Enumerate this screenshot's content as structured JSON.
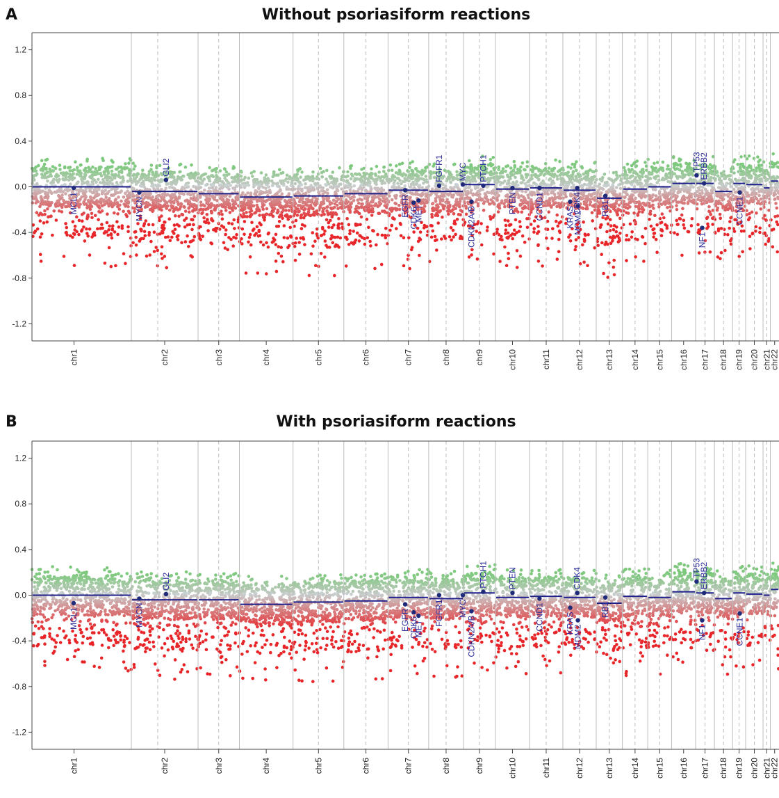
{
  "colors": {
    "gain": "#7fc97f",
    "loss": "#e8262a",
    "neutral": "#c8c8c8",
    "segment": "#1f1f8a",
    "gene_point": "#1f2a7a",
    "gene_label": "#2a2a9a"
  },
  "chart_data": [
    {
      "type": "scatter",
      "panel_label": "A",
      "title": "Without psoriasiform reactions",
      "xlabel": "",
      "ylabel": "",
      "ylim": [
        -1.35,
        1.35
      ],
      "yticks": [
        "1.2",
        "0.8",
        "0.4",
        "0.0",
        "-0.4",
        "-0.8",
        "-1.2"
      ],
      "ytick_values": [
        1.2,
        0.8,
        0.4,
        0.0,
        -0.4,
        -0.8,
        -1.2
      ],
      "grid": "vertical chromosome separators",
      "chromosomes": [
        "chr1",
        "chr2",
        "chr3",
        "chr4",
        "chr5",
        "chr6",
        "chr7",
        "chr8",
        "chr9",
        "chr10",
        "chr11",
        "chr12",
        "chr13",
        "chr14",
        "chr15",
        "chr16",
        "chr17",
        "chr18",
        "chr19",
        "chr20",
        "chr21",
        "chr22"
      ],
      "segments": [
        0.0,
        -0.04,
        -0.06,
        -0.09,
        -0.08,
        -0.06,
        -0.03,
        -0.04,
        0.02,
        -0.02,
        -0.01,
        -0.03,
        -0.1,
        -0.02,
        0.0,
        0.03,
        0.03,
        -0.04,
        0.03,
        0.02,
        -0.01,
        0.05
      ],
      "genes": [
        {
          "name": "MCL1",
          "chr": "chr1",
          "value": -0.01,
          "label_side": "below"
        },
        {
          "name": "MYCN",
          "chr": "chr2",
          "value": -0.05,
          "label_side": "below"
        },
        {
          "name": "GLI2",
          "chr": "chr2",
          "value": 0.06,
          "label_side": "above"
        },
        {
          "name": "EGFR",
          "chr": "chr7",
          "value": -0.03,
          "label_side": "below"
        },
        {
          "name": "CDK6",
          "chr": "chr7",
          "value": -0.14,
          "label_side": "below"
        },
        {
          "name": "MET",
          "chr": "chr7",
          "value": -0.12,
          "label_side": "below"
        },
        {
          "name": "FGFR1",
          "chr": "chr8",
          "value": 0.01,
          "label_side": "above"
        },
        {
          "name": "MYC",
          "chr": "chr8",
          "value": 0.02,
          "label_side": "above"
        },
        {
          "name": "CDKN2A/B",
          "chr": "chr9",
          "value": -0.13,
          "label_side": "below"
        },
        {
          "name": "PTCH1",
          "chr": "chr9",
          "value": 0.01,
          "label_side": "above"
        },
        {
          "name": "PTEN",
          "chr": "chr10",
          "value": -0.01,
          "label_side": "below"
        },
        {
          "name": "CCND1",
          "chr": "chr11",
          "value": -0.01,
          "label_side": "below"
        },
        {
          "name": "KRAS",
          "chr": "chr12",
          "value": -0.13,
          "label_side": "below"
        },
        {
          "name": "MDM2",
          "chr": "chr12",
          "value": -0.17,
          "label_side": "below"
        },
        {
          "name": "CDK4",
          "chr": "chr12",
          "value": -0.01,
          "label_side": "below"
        },
        {
          "name": "RB1",
          "chr": "chr13",
          "value": -0.08,
          "label_side": "below"
        },
        {
          "name": "TP53",
          "chr": "chr17",
          "value": 0.1,
          "label_side": "above"
        },
        {
          "name": "ERBB2",
          "chr": "chr17",
          "value": 0.03,
          "label_side": "above"
        },
        {
          "name": "NF1",
          "chr": "chr17",
          "value": -0.36,
          "label_side": "below"
        },
        {
          "name": "CCNE1",
          "chr": "chr19",
          "value": -0.05,
          "label_side": "below"
        }
      ]
    },
    {
      "type": "scatter",
      "panel_label": "B",
      "title": "With psoriasiform reactions",
      "xlabel": "",
      "ylabel": "",
      "ylim": [
        -1.35,
        1.35
      ],
      "yticks": [
        "1.2",
        "0.8",
        "0.4",
        "0.0",
        "-0.4",
        "-0.8",
        "-1.2"
      ],
      "ytick_values": [
        1.2,
        0.8,
        0.4,
        0.0,
        -0.4,
        -0.8,
        -1.2
      ],
      "grid": "vertical chromosome separators",
      "chromosomes": [
        "chr1",
        "chr2",
        "chr3",
        "chr4",
        "chr5",
        "chr6",
        "chr7",
        "chr8",
        "chr9",
        "chr10",
        "chr11",
        "chr12",
        "chr13",
        "chr14",
        "chr15",
        "chr16",
        "chr17",
        "chr18",
        "chr19",
        "chr20",
        "chr21",
        "chr22"
      ],
      "segments": [
        0.0,
        -0.04,
        -0.04,
        -0.08,
        -0.06,
        -0.05,
        -0.02,
        -0.03,
        0.02,
        -0.02,
        -0.01,
        -0.02,
        -0.07,
        -0.01,
        -0.02,
        0.03,
        0.02,
        -0.03,
        0.02,
        0.01,
        0.0,
        0.05
      ],
      "genes": [
        {
          "name": "MCL1",
          "chr": "chr1",
          "value": -0.07,
          "label_side": "below"
        },
        {
          "name": "MYCN",
          "chr": "chr2",
          "value": -0.03,
          "label_side": "below"
        },
        {
          "name": "GLI2",
          "chr": "chr2",
          "value": 0.01,
          "label_side": "above"
        },
        {
          "name": "EGFR",
          "chr": "chr7",
          "value": -0.08,
          "label_side": "below"
        },
        {
          "name": "CDK6",
          "chr": "chr7",
          "value": -0.15,
          "label_side": "below"
        },
        {
          "name": "MET",
          "chr": "chr7",
          "value": -0.18,
          "label_side": "below"
        },
        {
          "name": "FGFR1",
          "chr": "chr8",
          "value": 0.0,
          "label_side": "below"
        },
        {
          "name": "MYC",
          "chr": "chr8",
          "value": 0.0,
          "label_side": "below"
        },
        {
          "name": "CDKN2A/B",
          "chr": "chr9",
          "value": -0.14,
          "label_side": "below"
        },
        {
          "name": "PTCH1",
          "chr": "chr9",
          "value": 0.03,
          "label_side": "above"
        },
        {
          "name": "PTEN",
          "chr": "chr10",
          "value": 0.02,
          "label_side": "above"
        },
        {
          "name": "CCND1",
          "chr": "chr11",
          "value": -0.03,
          "label_side": "below"
        },
        {
          "name": "KRAS",
          "chr": "chr12",
          "value": -0.11,
          "label_side": "below"
        },
        {
          "name": "MDM2",
          "chr": "chr12",
          "value": -0.22,
          "label_side": "below"
        },
        {
          "name": "CDK4",
          "chr": "chr12",
          "value": 0.02,
          "label_side": "above"
        },
        {
          "name": "RB1",
          "chr": "chr13",
          "value": -0.02,
          "label_side": "below"
        },
        {
          "name": "TP53",
          "chr": "chr17",
          "value": 0.12,
          "label_side": "above"
        },
        {
          "name": "ERBB2",
          "chr": "chr17",
          "value": 0.02,
          "label_side": "above"
        },
        {
          "name": "NF1",
          "chr": "chr17",
          "value": -0.22,
          "label_side": "below"
        },
        {
          "name": "CCNE1",
          "chr": "chr19",
          "value": -0.16,
          "label_side": "below"
        }
      ]
    }
  ]
}
